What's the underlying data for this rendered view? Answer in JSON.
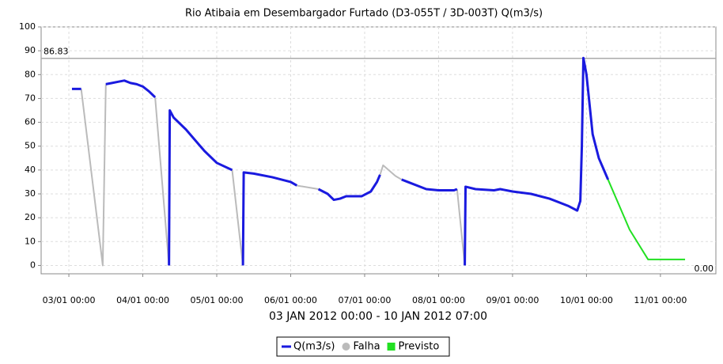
{
  "chart_data": {
    "type": "line",
    "title": "Rio Atibaia em Desembargador Furtado (D3-055T / 3D-003T) Q(m3/s)",
    "x_label": "03 JAN 2012 00:00 - 10 JAN 2012 07:00",
    "xlim": [
      "02/01 15:00",
      "11/01 18:00"
    ],
    "xticks": [
      "03/01 00:00",
      "04/01 00:00",
      "05/01 00:00",
      "06/01 00:00",
      "07/01 00:00",
      "08/01 00:00",
      "09/01 00:00",
      "10/01 00:00",
      "11/01 00:00"
    ],
    "ylim": [
      -3.5,
      100
    ],
    "yticks": [
      0,
      10,
      20,
      30,
      40,
      50,
      60,
      70,
      80,
      90,
      100
    ],
    "grid": true,
    "legend": "bottom",
    "reference_line": 86.83,
    "end_label": {
      "value": 0,
      "label": "0.00"
    },
    "series": [
      {
        "name": "Q(m3/s)",
        "color": "#1a1adf",
        "marker": "line",
        "x": [
          "03/01 01:00",
          "03/01 04:00",
          "03/01 08:00",
          "03/01 12:00",
          "03/01 14:00",
          "03/01 16:00",
          "03/01 18:00",
          "03/01 20:00",
          "03/01 22:00",
          "04/01 00:00",
          "04/01 02:00",
          "04/01 04:00",
          "04/01 06:00",
          "04/01 08:30",
          "04/01 08:45",
          "04/01 10:00",
          "04/01 14:00",
          "04/01 20:00",
          "05/01 00:00",
          "05/01 05:00",
          "05/01 07:00",
          "05/01 08:30",
          "05/01 08:45",
          "05/01 12:00",
          "05/01 18:00",
          "06/01 00:00",
          "06/01 02:00",
          "06/01 05:00",
          "06/01 09:00",
          "06/01 12:00",
          "06/01 14:00",
          "06/01 16:00",
          "06/01 18:00",
          "06/01 23:00",
          "07/01 02:00",
          "07/01 04:00",
          "07/01 05:00",
          "07/01 08:00",
          "07/01 12:00",
          "07/01 14:00",
          "07/01 20:00",
          "08/01 00:00",
          "08/01 05:00",
          "08/01 06:00",
          "08/01 07:00",
          "08/01 08:30",
          "08/01 08:45",
          "08/01 12:00",
          "08/01 18:00",
          "08/01 20:00",
          "09/01 00:00",
          "09/01 06:00",
          "09/01 12:00",
          "09/01 18:00",
          "09/01 21:00",
          "09/01 22:00",
          "09/01 22:30",
          "09/01 23:00",
          "10/01 00:00",
          "10/01 02:00",
          "10/01 04:00",
          "10/01 06:00",
          "10/01 07:00"
        ],
        "values": [
          74,
          74,
          null,
          76,
          76.5,
          77,
          77.5,
          76.5,
          76,
          75,
          73,
          70.5,
          null,
          0,
          65,
          62,
          57,
          48,
          43,
          40,
          null,
          0,
          39,
          38.5,
          37,
          35,
          33.5,
          null,
          32,
          30,
          27.5,
          28,
          29,
          29,
          31,
          35,
          38,
          null,
          36,
          35,
          32,
          31.5,
          31.5,
          32,
          null,
          0,
          33,
          32,
          31.5,
          32,
          31,
          30,
          28,
          25,
          23,
          27,
          50,
          87,
          80,
          55,
          45,
          39,
          36
        ]
      },
      {
        "name": "Falha",
        "color": "#bbbbbb",
        "marker": "circle",
        "x": [
          "03/01 04:00",
          "03/01 11:00",
          "03/01 12:00",
          "03/01 18:00",
          "04/01 04:00",
          "04/01 08:30",
          "04/01 20:00",
          "05/01 05:00",
          "05/01 08:30",
          "05/01 18:00",
          "06/01 02:00",
          "06/01 09:00",
          "06/01 20:00",
          "07/01 05:00",
          "07/01 06:00",
          "07/01 10:00",
          "07/01 12:00",
          "07/01 20:00",
          "08/01 06:00",
          "08/01 08:30"
        ],
        "values": [
          74,
          0,
          76,
          null,
          70.5,
          0,
          null,
          40,
          0,
          null,
          33.5,
          32,
          null,
          38,
          42,
          37.5,
          36,
          null,
          32,
          0
        ]
      },
      {
        "name": "Previsto",
        "color": "#22e022",
        "marker": "square",
        "x": [
          "10/01 07:00",
          "10/01 14:00",
          "10/01 20:00",
          "11/01 08:00"
        ],
        "values": [
          36,
          15,
          2.5,
          2.5
        ]
      }
    ]
  }
}
